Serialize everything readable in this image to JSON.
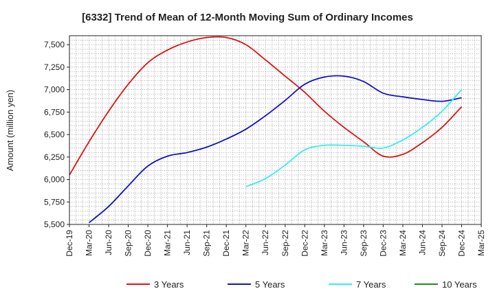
{
  "chart_data": {
    "type": "line",
    "title": "[6332]  Trend of Mean of 12-Month Moving Sum of Ordinary Incomes",
    "xlabel": "",
    "ylabel": "Amount (million yen)",
    "ylim": [
      5500,
      7600
    ],
    "yticks": [
      5500,
      5750,
      6000,
      6250,
      6500,
      6750,
      7000,
      7250,
      7500
    ],
    "ytick_labels": [
      "5,500",
      "5,750",
      "6,000",
      "6,250",
      "6,500",
      "6,750",
      "7,000",
      "7,250",
      "7,500"
    ],
    "xticks": [
      "Dec-19",
      "Mar-20",
      "Jun-20",
      "Sep-20",
      "Dec-20",
      "Mar-21",
      "Jun-21",
      "Sep-21",
      "Dec-21",
      "Mar-22",
      "Jun-22",
      "Sep-22",
      "Dec-22",
      "Mar-23",
      "Jun-23",
      "Sep-23",
      "Dec-23",
      "Mar-24",
      "Jun-24",
      "Sep-24",
      "Dec-24",
      "Mar-25"
    ],
    "grid": true,
    "legend_position": "bottom",
    "series": [
      {
        "name": "3 Years",
        "color": "#dd1111",
        "points": [
          [
            0,
            6050
          ],
          [
            1,
            6420
          ],
          [
            2,
            6760
          ],
          [
            3,
            7060
          ],
          [
            4,
            7300
          ],
          [
            5,
            7440
          ],
          [
            6,
            7530
          ],
          [
            7,
            7580
          ],
          [
            8,
            7580
          ],
          [
            9,
            7500
          ],
          [
            10,
            7330
          ],
          [
            11,
            7150
          ],
          [
            12,
            6970
          ],
          [
            13,
            6760
          ],
          [
            14,
            6580
          ],
          [
            15,
            6420
          ],
          [
            16,
            6260
          ],
          [
            17,
            6280
          ],
          [
            18,
            6410
          ],
          [
            19,
            6580
          ],
          [
            20,
            6810
          ]
        ]
      },
      {
        "name": "5 Years",
        "color": "#1111cc",
        "points": [
          [
            1,
            5520
          ],
          [
            2,
            5700
          ],
          [
            3,
            5930
          ],
          [
            4,
            6150
          ],
          [
            5,
            6260
          ],
          [
            6,
            6300
          ],
          [
            7,
            6360
          ],
          [
            8,
            6450
          ],
          [
            9,
            6560
          ],
          [
            10,
            6710
          ],
          [
            11,
            6880
          ],
          [
            12,
            7060
          ],
          [
            13,
            7140
          ],
          [
            14,
            7150
          ],
          [
            15,
            7090
          ],
          [
            16,
            6960
          ],
          [
            17,
            6920
          ],
          [
            18,
            6890
          ],
          [
            19,
            6870
          ],
          [
            20,
            6910
          ]
        ]
      },
      {
        "name": "7 Years",
        "color": "#33eeee",
        "points": [
          [
            9,
            5920
          ],
          [
            10,
            6010
          ],
          [
            11,
            6160
          ],
          [
            12,
            6330
          ],
          [
            13,
            6380
          ],
          [
            14,
            6380
          ],
          [
            15,
            6370
          ],
          [
            16,
            6350
          ],
          [
            17,
            6440
          ],
          [
            18,
            6580
          ],
          [
            19,
            6760
          ],
          [
            20,
            7000
          ]
        ]
      },
      {
        "name": "10 Years",
        "color": "#228822",
        "points": []
      }
    ]
  }
}
